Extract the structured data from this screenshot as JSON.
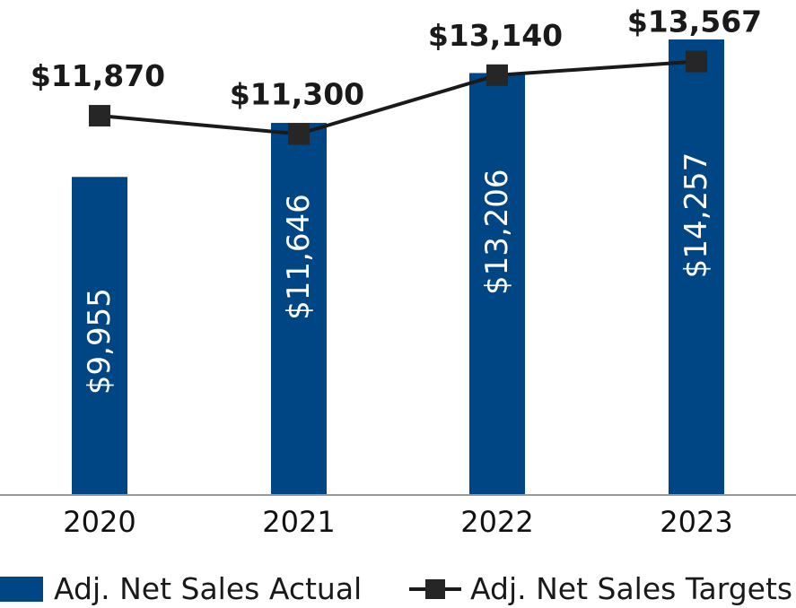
{
  "chart_data": {
    "type": "bar",
    "categories": [
      "2020",
      "2021",
      "2022",
      "2023"
    ],
    "series": [
      {
        "name": "Adj. Net Sales Actual",
        "kind": "bar",
        "values": [
          9955,
          11646,
          13206,
          14257
        ],
        "labels": [
          "$9,955",
          "$11,646",
          "$13,206",
          "$14,257"
        ],
        "color": "#004685"
      },
      {
        "name": "Adj. Net Sales Targets",
        "kind": "line",
        "values": [
          11870,
          11300,
          13140,
          13567
        ],
        "labels": [
          "$11,870",
          "$11,300",
          "$13,140",
          "$13,567"
        ],
        "color": "#1a1a1a"
      }
    ],
    "title": "",
    "xlabel": "",
    "ylabel": "",
    "ylim": [
      0,
      14257
    ],
    "grid": false,
    "legend": "bottom"
  }
}
